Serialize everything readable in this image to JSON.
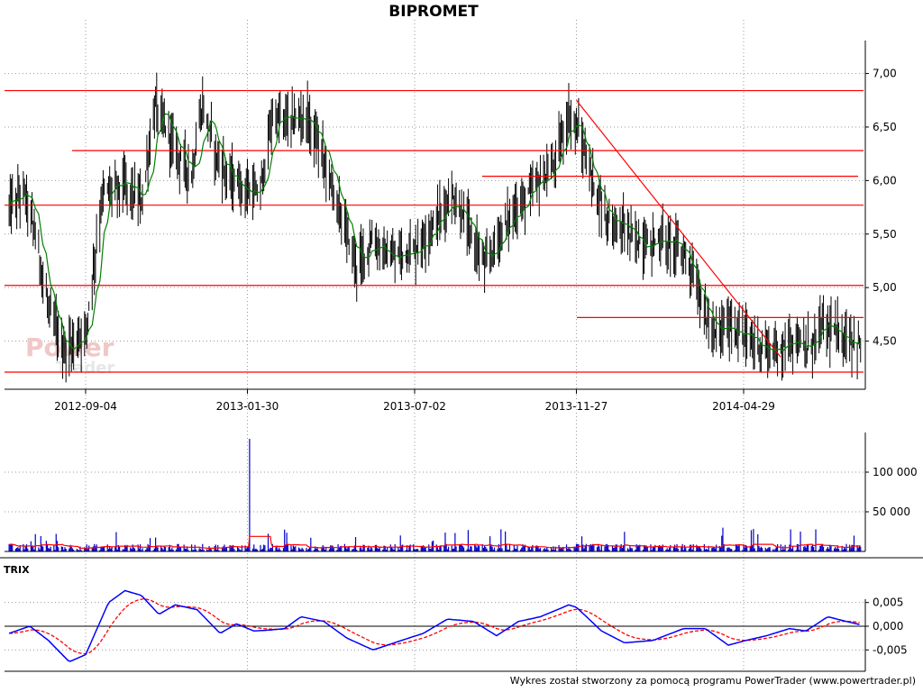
{
  "title": "BIPROMET",
  "footer": "Wykres został stworzony za pomocą programu PowerTrader (www.powertrader.pl)",
  "watermark": {
    "line1": "Power",
    "line2": "Trader"
  },
  "colors": {
    "price": "#000000",
    "ma": "#008000",
    "support_lines": "#ff0000",
    "volume_bars": "#0000cc",
    "volume_ma": "#ff0000",
    "trix": "#0000ff",
    "trix_signal": "#ff0000",
    "grid": "#999999"
  },
  "chart_data": [
    {
      "type": "candlestick",
      "name": "price",
      "title": "BIPROMET",
      "x_ticks": [
        "2012-09-04",
        "2013-01-30",
        "2013-07-02",
        "2013-11-27",
        "2014-04-29"
      ],
      "y_ticks": [
        "7,00",
        "6,50",
        "6,00",
        "5,50",
        "5,00",
        "4,50"
      ],
      "ylim": [
        4.05,
        7.35
      ],
      "grid": true,
      "horizontal_levels": [
        6.84,
        6.28,
        6.04,
        5.77,
        5.02,
        4.72,
        4.21
      ],
      "trendlines": [
        {
          "from": [
            "2013-11-27",
            6.75
          ],
          "to": [
            "2014-06-02",
            4.35
          ]
        }
      ],
      "series_keypoints": [
        [
          "2012-06-26",
          5.75
        ],
        [
          "2012-07-10",
          5.9
        ],
        [
          "2012-07-20",
          5.5
        ],
        [
          "2012-08-01",
          4.8
        ],
        [
          "2012-08-15",
          4.4
        ],
        [
          "2012-08-30",
          4.55
        ],
        [
          "2012-09-04",
          4.6
        ],
        [
          "2012-09-20",
          5.9
        ],
        [
          "2012-10-10",
          5.95
        ],
        [
          "2012-10-25",
          5.8
        ],
        [
          "2012-11-07",
          6.7
        ],
        [
          "2012-11-25",
          6.3
        ],
        [
          "2012-12-10",
          6.05
        ],
        [
          "2012-12-20",
          6.7
        ],
        [
          "2013-01-03",
          6.2
        ],
        [
          "2013-01-15",
          6.0
        ],
        [
          "2013-01-30",
          5.9
        ],
        [
          "2013-02-10",
          5.85
        ],
        [
          "2013-02-22",
          6.6
        ],
        [
          "2013-03-10",
          6.55
        ],
        [
          "2013-03-25",
          6.6
        ],
        [
          "2013-04-10",
          6.2
        ],
        [
          "2013-04-25",
          5.7
        ],
        [
          "2013-05-10",
          5.2
        ],
        [
          "2013-05-25",
          5.45
        ],
        [
          "2013-06-10",
          5.25
        ],
        [
          "2013-06-25",
          5.35
        ],
        [
          "2013-07-02",
          5.35
        ],
        [
          "2013-07-20",
          5.6
        ],
        [
          "2013-08-05",
          5.85
        ],
        [
          "2013-08-20",
          5.55
        ],
        [
          "2013-09-05",
          5.2
        ],
        [
          "2013-09-20",
          5.55
        ],
        [
          "2013-10-05",
          5.75
        ],
        [
          "2013-10-20",
          5.95
        ],
        [
          "2013-11-05",
          6.1
        ],
        [
          "2013-11-20",
          6.6
        ],
        [
          "2013-11-27",
          6.5
        ],
        [
          "2013-12-10",
          6.05
        ],
        [
          "2013-12-25",
          5.65
        ],
        [
          "2014-01-10",
          5.55
        ],
        [
          "2014-01-25",
          5.4
        ],
        [
          "2014-02-10",
          5.45
        ],
        [
          "2014-02-25",
          5.4
        ],
        [
          "2014-03-10",
          5.25
        ],
        [
          "2014-03-20",
          4.9
        ],
        [
          "2014-04-01",
          4.55
        ],
        [
          "2014-04-15",
          4.65
        ],
        [
          "2014-04-29",
          4.55
        ],
        [
          "2014-05-15",
          4.45
        ],
        [
          "2014-05-30",
          4.4
        ],
        [
          "2014-06-10",
          4.55
        ],
        [
          "2014-06-25",
          4.4
        ],
        [
          "2014-07-10",
          4.65
        ],
        [
          "2014-07-25",
          4.55
        ],
        [
          "2014-08-10",
          4.5
        ],
        [
          "2014-08-20",
          4.35
        ]
      ]
    },
    {
      "type": "bar",
      "name": "volume",
      "y_ticks": [
        "100 000",
        "50 000"
      ],
      "ylim": [
        0,
        150000
      ],
      "typical_volume": 5000,
      "spikes": [
        {
          "date": "2013-02-01",
          "value": 142000
        },
        {
          "date": "2013-02-02",
          "value": 55000
        },
        {
          "date": "2012-10-20",
          "value": 34000
        },
        {
          "date": "2012-09-01",
          "value": 20000
        },
        {
          "date": "2013-08-20",
          "value": 27000
        },
        {
          "date": "2014-04-10",
          "value": 30000
        },
        {
          "date": "2014-06-20",
          "value": 25000
        }
      ],
      "volume_ma_bump": {
        "from": "2013-02-01",
        "to": "2013-02-20",
        "value": 19000
      }
    },
    {
      "type": "line",
      "name": "TRIX",
      "label": "TRIX",
      "y_ticks": [
        "0,005",
        "0,000",
        "-0,005"
      ],
      "ylim": [
        -0.0095,
        0.0095
      ],
      "series_keypoints": [
        [
          "2012-06-26",
          -0.0015
        ],
        [
          "2012-07-15",
          0.0
        ],
        [
          "2012-08-01",
          -0.003
        ],
        [
          "2012-08-20",
          -0.0075
        ],
        [
          "2012-09-04",
          -0.006
        ],
        [
          "2012-09-25",
          0.005
        ],
        [
          "2012-10-10",
          0.0075
        ],
        [
          "2012-10-25",
          0.0065
        ],
        [
          "2012-11-10",
          0.0025
        ],
        [
          "2012-11-25",
          0.0045
        ],
        [
          "2012-12-15",
          0.0035
        ],
        [
          "2013-01-05",
          -0.0015
        ],
        [
          "2013-01-20",
          0.0005
        ],
        [
          "2013-02-05",
          -0.001
        ],
        [
          "2013-02-20",
          -0.0008
        ],
        [
          "2013-03-05",
          -0.0005
        ],
        [
          "2013-03-20",
          0.002
        ],
        [
          "2013-04-10",
          0.001
        ],
        [
          "2013-05-01",
          -0.0025
        ],
        [
          "2013-05-25",
          -0.005
        ],
        [
          "2013-06-20",
          -0.003
        ],
        [
          "2013-07-10",
          -0.0015
        ],
        [
          "2013-08-01",
          0.0015
        ],
        [
          "2013-08-25",
          0.001
        ],
        [
          "2013-09-15",
          -0.002
        ],
        [
          "2013-10-05",
          0.001
        ],
        [
          "2013-10-25",
          0.002
        ],
        [
          "2013-11-20",
          0.0045
        ],
        [
          "2013-11-27",
          0.004
        ],
        [
          "2013-12-20",
          -0.001
        ],
        [
          "2014-01-10",
          -0.0035
        ],
        [
          "2014-02-05",
          -0.003
        ],
        [
          "2014-03-05",
          -0.0005
        ],
        [
          "2014-03-25",
          -0.0005
        ],
        [
          "2014-04-15",
          -0.004
        ],
        [
          "2014-05-01",
          -0.003
        ],
        [
          "2014-05-20",
          -0.002
        ],
        [
          "2014-06-10",
          -0.0005
        ],
        [
          "2014-06-25",
          -0.001
        ],
        [
          "2014-07-15",
          0.002
        ],
        [
          "2014-08-01",
          0.001
        ],
        [
          "2014-08-20",
          0.0
        ]
      ]
    }
  ]
}
